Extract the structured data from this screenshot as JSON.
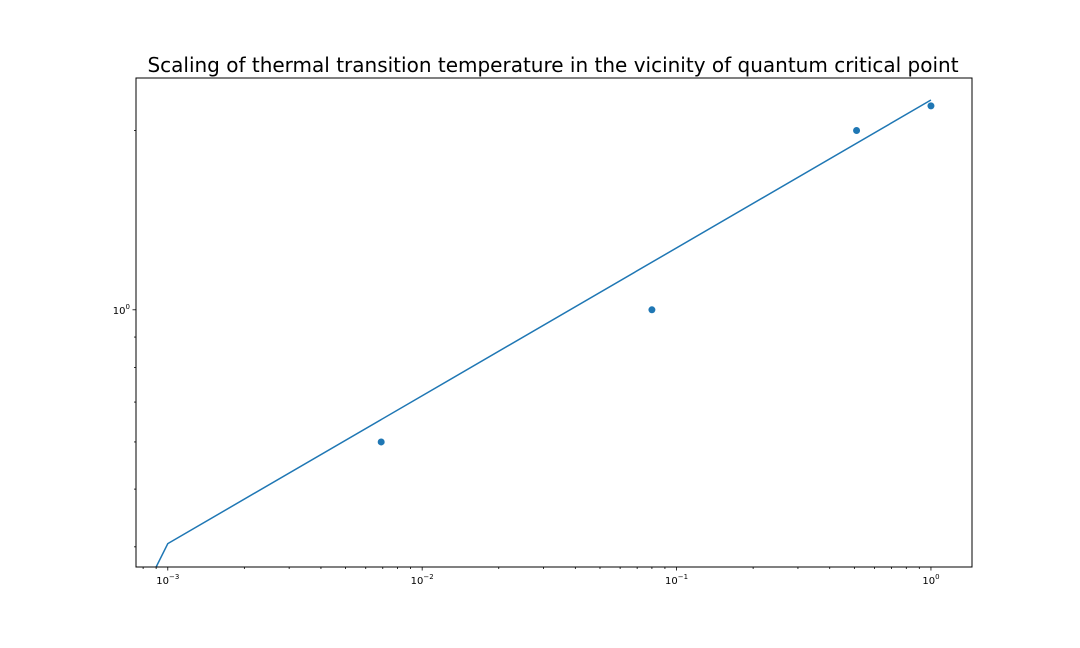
{
  "chart_data": {
    "type": "scatter",
    "title": "Scaling of thermal transition temperature in the vicinity of quantum critical point",
    "xlabel": "",
    "ylabel": "",
    "xscale": "log",
    "yscale": "log",
    "xlim": [
      0.00075,
      1.45
    ],
    "ylim": [
      0.37,
      2.45
    ],
    "grid": false,
    "colors": {
      "series": "#1f77b4",
      "axes": "#000000",
      "background": "#ffffff"
    },
    "x_ticks": [
      {
        "value": 0.001,
        "base": "10",
        "exp": "−3"
      },
      {
        "value": 0.01,
        "base": "10",
        "exp": "−2"
      },
      {
        "value": 0.1,
        "base": "10",
        "exp": "−1"
      },
      {
        "value": 1,
        "base": "10",
        "exp": "0"
      }
    ],
    "y_ticks": [
      {
        "value": 1,
        "base": "10",
        "exp": "0"
      }
    ],
    "y_minor_ticks": [
      0.4,
      0.5,
      0.6,
      0.7,
      0.8,
      0.9,
      2
    ],
    "series": [
      {
        "kind": "points",
        "x": [
          0.0069,
          0.08,
          0.51,
          1.0
        ],
        "y": [
          0.6,
          1.0,
          2.0,
          2.2
        ]
      },
      {
        "kind": "line",
        "x": [
          0.0009,
          0.001,
          1.0
        ],
        "y": [
          0.37,
          0.405,
          2.25
        ]
      }
    ]
  }
}
